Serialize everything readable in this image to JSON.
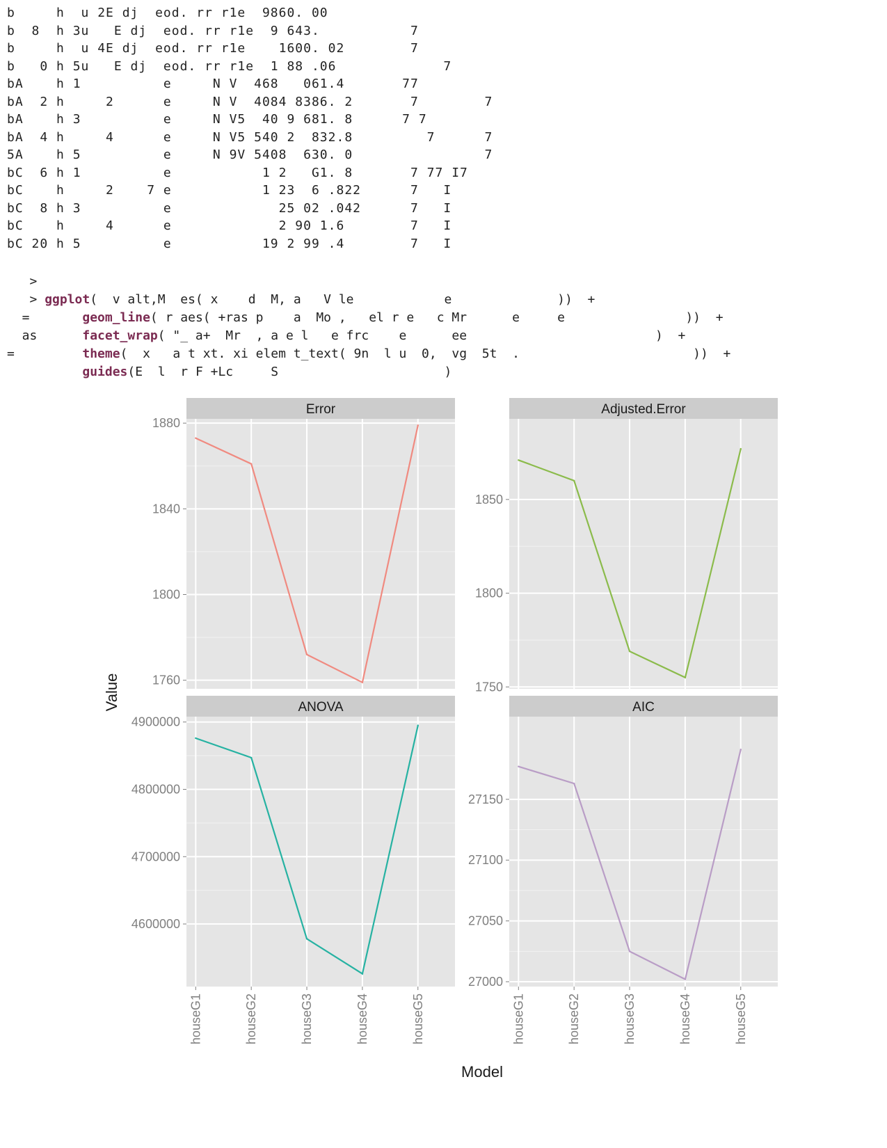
{
  "console": {
    "table_lines": [
      "b     h  u 2E dj  eod. rr r1e  9860. 00",
      "b  8  h 3u   E dj  eod. rr r1e  9 643.           7",
      "b     h  u 4E dj  eod. rr r1e    1600. 02        7",
      "b   0 h 5u   E dj  eod. rr r1e  1 88 .06             7",
      "bA    h 1          e     N V  468   061.4       77",
      "bA  2 h     2      e     N V  4084 8386. 2       7        7",
      "bA    h 3          e     N V5  40 9 681. 8      7 7",
      "bA  4 h     4      e     N V5 540 2  832.8         7      7",
      "5A    h 5          e     N 9V 5408  630. 0                7",
      "bC  6 h 1          e           1 2   G1. 8       7 77 I7",
      "bC    h     2    7 e           1 23  6 .822      7   I",
      "bC  8 h 3          e             25 02 .042      7   I",
      "bC    h     4      e             2 90 1.6        7   I",
      "bC 20 h 5          e           19 2 99 .4        7   I"
    ]
  },
  "code": {
    "prompt1": "   >",
    "line1_prefix": "   > ",
    "line1_fn": "ggplot",
    "line1_rest": "(  v alt,M  es( x    d  M, a   V le            e              ))  +",
    "line2_prefix": "  =       ",
    "line2_fn": "geom_line",
    "line2_rest": "( r aes( +ras p    a  Mo ,   el r e   c Mr      e     e                ))  +",
    "line3_prefix": "  as      ",
    "line3_fn": "facet_wrap",
    "line3_rest": "( \"_ a+  Mr  , a e l   e frc    e      ee                         )  +",
    "line4_prefix": "=         ",
    "line4_fn": "theme",
    "line4_rest": "(  x   a t xt. xi elem t_text( 9n  l u  0,  vg  5t  .                       ))  +",
    "line5_prefix": "          ",
    "line5_fn": "guides",
    "line5_rest": "(E  l  r F +Lc     S                      )"
  },
  "chart_data": {
    "type": "line",
    "layout": "facet_wrap 2x2",
    "xlabel": "Model",
    "ylabel": "Value",
    "categories": [
      "houseG1",
      "houseG2",
      "houseG3",
      "houseG4",
      "houseG5"
    ],
    "grid": true,
    "panel_background": "#e5e5e5",
    "strip_background": "#cccccc",
    "panels": [
      {
        "title": "Error",
        "color": "#f08a80",
        "ylim": [
          1756,
          1882
        ],
        "ticks": [
          1760,
          1800,
          1840,
          1880
        ],
        "values": [
          1873,
          1861,
          1772,
          1759,
          1879
        ]
      },
      {
        "title": "Adjusted.Error",
        "color": "#8bbb4b",
        "ylim": [
          1749,
          1893
        ],
        "ticks": [
          1750,
          1800,
          1850
        ],
        "values": [
          1871,
          1860,
          1769,
          1755,
          1877
        ]
      },
      {
        "title": "ANOVA",
        "color": "#26b2a2",
        "ylim": [
          4507000,
          4908000
        ],
        "ticks": [
          4600000,
          4700000,
          4800000,
          4900000
        ],
        "values": [
          4876000,
          4847000,
          4578000,
          4526000,
          4895000
        ]
      },
      {
        "title": "AIC",
        "color": "#b99dc6",
        "ylim": [
          26996,
          27218
        ],
        "ticks": [
          27000,
          27050,
          27100,
          27150
        ],
        "values": [
          27177,
          27163,
          27025,
          27002,
          27191
        ]
      }
    ]
  }
}
